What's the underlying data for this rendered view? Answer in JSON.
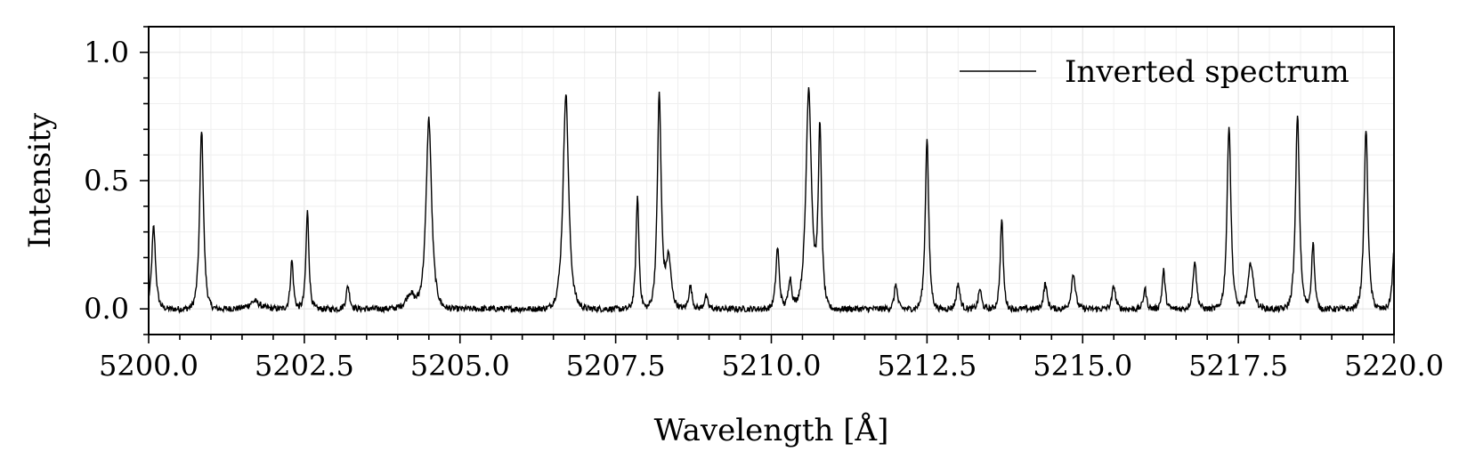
{
  "chart_data": {
    "type": "line",
    "title": "",
    "xlabel": "Wavelength [Å]",
    "ylabel": "Intensity",
    "xlim": [
      5200.0,
      5220.0
    ],
    "ylim": [
      -0.1,
      1.1
    ],
    "x_ticks": [
      5200.0,
      5202.5,
      5205.0,
      5207.5,
      5210.0,
      5212.5,
      5215.0,
      5217.5,
      5220.0
    ],
    "x_tick_labels": [
      "5200.0",
      "5202.5",
      "5205.0",
      "5207.5",
      "5210.0",
      "5212.5",
      "5215.0",
      "5217.5",
      "5220.0"
    ],
    "y_ticks": [
      0.0,
      0.5,
      1.0
    ],
    "y_tick_labels": [
      "0.0",
      "0.5",
      "1.0"
    ],
    "grid": true,
    "legend": {
      "position": "top-right",
      "entries": [
        "Inverted spectrum"
      ]
    },
    "series": [
      {
        "name": "Inverted spectrum",
        "color": "#000000",
        "peaks": [
          {
            "center": 5200.08,
            "height": 0.32,
            "width": 0.045
          },
          {
            "center": 5200.85,
            "height": 0.7,
            "width": 0.045
          },
          {
            "center": 5201.7,
            "height": 0.03,
            "width": 0.12
          },
          {
            "center": 5202.3,
            "height": 0.19,
            "width": 0.035
          },
          {
            "center": 5202.55,
            "height": 0.38,
            "width": 0.035
          },
          {
            "center": 5203.2,
            "height": 0.09,
            "width": 0.04
          },
          {
            "center": 5204.2,
            "height": 0.06,
            "width": 0.1
          },
          {
            "center": 5204.5,
            "height": 0.74,
            "width": 0.065
          },
          {
            "center": 5206.7,
            "height": 0.84,
            "width": 0.065
          },
          {
            "center": 5207.85,
            "height": 0.44,
            "width": 0.035
          },
          {
            "center": 5208.2,
            "height": 0.83,
            "width": 0.045
          },
          {
            "center": 5208.35,
            "height": 0.2,
            "width": 0.06
          },
          {
            "center": 5208.7,
            "height": 0.09,
            "width": 0.04
          },
          {
            "center": 5208.95,
            "height": 0.05,
            "width": 0.04
          },
          {
            "center": 5210.1,
            "height": 0.24,
            "width": 0.04
          },
          {
            "center": 5210.3,
            "height": 0.12,
            "width": 0.04
          },
          {
            "center": 5210.6,
            "height": 0.86,
            "width": 0.065
          },
          {
            "center": 5210.78,
            "height": 0.69,
            "width": 0.04
          },
          {
            "center": 5212.0,
            "height": 0.1,
            "width": 0.035
          },
          {
            "center": 5212.5,
            "height": 0.67,
            "width": 0.04
          },
          {
            "center": 5213.0,
            "height": 0.1,
            "width": 0.04
          },
          {
            "center": 5213.35,
            "height": 0.08,
            "width": 0.035
          },
          {
            "center": 5213.7,
            "height": 0.35,
            "width": 0.035
          },
          {
            "center": 5214.4,
            "height": 0.1,
            "width": 0.04
          },
          {
            "center": 5214.85,
            "height": 0.14,
            "width": 0.045
          },
          {
            "center": 5215.5,
            "height": 0.09,
            "width": 0.04
          },
          {
            "center": 5216.0,
            "height": 0.08,
            "width": 0.035
          },
          {
            "center": 5216.3,
            "height": 0.15,
            "width": 0.035
          },
          {
            "center": 5216.8,
            "height": 0.19,
            "width": 0.04
          },
          {
            "center": 5217.35,
            "height": 0.72,
            "width": 0.045
          },
          {
            "center": 5217.7,
            "height": 0.18,
            "width": 0.06
          },
          {
            "center": 5218.45,
            "height": 0.76,
            "width": 0.045
          },
          {
            "center": 5218.7,
            "height": 0.26,
            "width": 0.035
          },
          {
            "center": 5219.55,
            "height": 0.7,
            "width": 0.045
          },
          {
            "center": 5220.0,
            "height": 0.22,
            "width": 0.04
          }
        ],
        "baseline": 0.0,
        "noise_amplitude": 0.012
      }
    ]
  }
}
